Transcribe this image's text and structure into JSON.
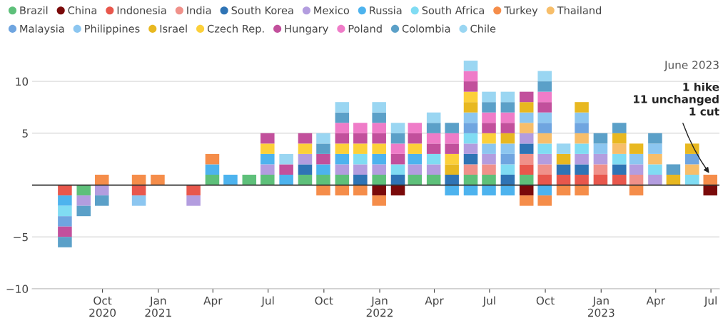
{
  "chart_data": {
    "type": "bar",
    "stacked": true,
    "x": [
      "2020-07-31",
      "2020-08-31",
      "2020-09-30",
      "2020-10-31",
      "2020-11-30",
      "2020-12-31",
      "2021-01-31",
      "2021-02-28",
      "2021-03-31",
      "2021-04-30",
      "2021-05-31",
      "2021-06-30",
      "2021-07-31",
      "2021-08-31",
      "2021-09-30",
      "2021-10-31",
      "2021-11-30",
      "2021-12-31",
      "2022-01-31",
      "2022-02-28",
      "2022-03-31",
      "2022-04-30",
      "2022-05-31",
      "2022-06-30",
      "2022-07-31",
      "2022-08-31",
      "2022-09-30",
      "2022-10-31",
      "2022-11-30",
      "2022-12-31",
      "2023-01-31",
      "2023-02-28",
      "2023-03-31",
      "2023-04-30",
      "2023-05-31",
      "2023-06-30"
    ],
    "series": [
      {
        "name": "Brazil",
        "color": "#5ec07a",
        "values": [
          null,
          -1,
          null,
          null,
          null,
          null,
          null,
          null,
          1,
          null,
          1,
          1,
          null,
          1,
          1,
          1,
          null,
          1,
          null,
          1,
          1,
          null,
          1,
          1,
          null,
          1,
          null,
          null,
          null,
          null,
          null,
          null,
          null,
          null,
          null,
          null
        ]
      },
      {
        "name": "China",
        "color": "#7a0a0a",
        "values": [
          null,
          null,
          null,
          null,
          null,
          null,
          null,
          null,
          null,
          null,
          null,
          null,
          null,
          null,
          null,
          null,
          null,
          -1,
          -1,
          null,
          null,
          null,
          null,
          null,
          null,
          -1,
          null,
          null,
          null,
          null,
          null,
          null,
          null,
          null,
          null,
          -1
        ]
      },
      {
        "name": "Indonesia",
        "color": "#e8574c",
        "values": [
          -1,
          null,
          null,
          null,
          -1,
          null,
          null,
          -1,
          null,
          null,
          null,
          null,
          null,
          null,
          null,
          null,
          null,
          null,
          null,
          null,
          null,
          null,
          null,
          null,
          null,
          1,
          1,
          1,
          1,
          1,
          1,
          null,
          null,
          null,
          null,
          null
        ]
      },
      {
        "name": "India",
        "color": "#f0918a",
        "values": [
          null,
          null,
          null,
          null,
          null,
          null,
          null,
          null,
          null,
          null,
          null,
          null,
          null,
          null,
          null,
          null,
          null,
          null,
          null,
          null,
          null,
          null,
          1,
          1,
          null,
          1,
          1,
          null,
          null,
          1,
          null,
          1,
          null,
          null,
          null,
          null
        ]
      },
      {
        "name": "South Korea",
        "color": "#2f74b5",
        "values": [
          null,
          null,
          null,
          null,
          null,
          null,
          null,
          null,
          null,
          null,
          null,
          null,
          null,
          1,
          null,
          null,
          1,
          null,
          1,
          null,
          null,
          1,
          1,
          null,
          1,
          1,
          null,
          1,
          1,
          null,
          1,
          null,
          null,
          null,
          null,
          null
        ]
      },
      {
        "name": "Mexico",
        "color": "#b39ddf",
        "values": [
          null,
          -1,
          -1,
          null,
          null,
          null,
          null,
          -1,
          null,
          null,
          null,
          1,
          null,
          1,
          null,
          1,
          1,
          1,
          null,
          1,
          1,
          null,
          1,
          1,
          null,
          1,
          1,
          null,
          1,
          1,
          null,
          1,
          1,
          null,
          null,
          null
        ]
      },
      {
        "name": "Russia",
        "color": "#4db3ee",
        "values": [
          -1,
          null,
          null,
          null,
          null,
          null,
          null,
          null,
          1,
          1,
          null,
          1,
          1,
          null,
          1,
          1,
          null,
          1,
          null,
          1,
          null,
          -1,
          -1,
          -1,
          -1,
          null,
          -1,
          null,
          null,
          null,
          null,
          null,
          null,
          null,
          null,
          null
        ]
      },
      {
        "name": "South Africa",
        "color": "#80dcf3",
        "values": [
          -1,
          null,
          null,
          null,
          null,
          null,
          null,
          null,
          null,
          null,
          null,
          null,
          null,
          null,
          null,
          null,
          1,
          null,
          1,
          null,
          1,
          null,
          1,
          null,
          1,
          null,
          1,
          null,
          1,
          null,
          1,
          null,
          1,
          null,
          1,
          null
        ]
      },
      {
        "name": "Turkey",
        "color": "#f58d4a",
        "values": [
          null,
          null,
          1,
          null,
          1,
          1,
          null,
          null,
          1,
          null,
          null,
          null,
          null,
          null,
          -1,
          -1,
          -1,
          -1,
          null,
          null,
          null,
          null,
          null,
          null,
          null,
          -1,
          -1,
          -1,
          -1,
          null,
          null,
          -1,
          null,
          null,
          null,
          1
        ]
      },
      {
        "name": "Thailand",
        "color": "#f7be6a",
        "values": [
          null,
          null,
          null,
          null,
          null,
          null,
          null,
          null,
          null,
          null,
          null,
          null,
          null,
          null,
          null,
          null,
          null,
          null,
          null,
          null,
          null,
          null,
          null,
          null,
          null,
          1,
          1,
          null,
          1,
          null,
          1,
          null,
          1,
          null,
          1,
          null
        ]
      },
      {
        "name": "Malaysia",
        "color": "#6fa5e0",
        "values": [
          -1,
          null,
          null,
          null,
          null,
          null,
          null,
          null,
          null,
          null,
          null,
          null,
          null,
          null,
          null,
          null,
          null,
          null,
          null,
          null,
          null,
          null,
          1,
          null,
          1,
          null,
          1,
          null,
          1,
          null,
          null,
          null,
          null,
          null,
          1,
          null
        ]
      },
      {
        "name": "Philippines",
        "color": "#8cc6f0",
        "values": [
          null,
          null,
          null,
          null,
          -1,
          null,
          null,
          null,
          null,
          null,
          null,
          null,
          null,
          null,
          null,
          null,
          null,
          null,
          null,
          null,
          null,
          null,
          1,
          1,
          1,
          1,
          1,
          null,
          1,
          1,
          null,
          1,
          1,
          null,
          null,
          null
        ]
      },
      {
        "name": "Israel",
        "color": "#e8b820",
        "values": [
          null,
          null,
          null,
          null,
          null,
          null,
          null,
          null,
          null,
          null,
          null,
          null,
          null,
          null,
          null,
          null,
          null,
          null,
          null,
          null,
          null,
          1,
          1,
          null,
          1,
          1,
          null,
          1,
          1,
          null,
          1,
          1,
          null,
          1,
          1,
          null
        ]
      },
      {
        "name": "Czech Rep.",
        "color": "#fcd03a",
        "values": [
          null,
          null,
          null,
          null,
          null,
          null,
          null,
          null,
          null,
          null,
          null,
          1,
          null,
          1,
          null,
          1,
          1,
          1,
          null,
          1,
          null,
          1,
          1,
          1,
          null,
          null,
          null,
          null,
          null,
          null,
          null,
          null,
          null,
          null,
          null,
          null
        ]
      },
      {
        "name": "Hungary",
        "color": "#c2509c",
        "values": [
          -1,
          null,
          null,
          null,
          null,
          null,
          null,
          null,
          null,
          null,
          null,
          1,
          1,
          1,
          1,
          1,
          1,
          1,
          1,
          1,
          1,
          1,
          1,
          1,
          1,
          1,
          1,
          null,
          null,
          null,
          null,
          null,
          null,
          null,
          null,
          null
        ]
      },
      {
        "name": "Poland",
        "color": "#ef7cc8",
        "values": [
          null,
          null,
          null,
          null,
          null,
          null,
          null,
          null,
          null,
          null,
          null,
          null,
          null,
          null,
          null,
          1,
          1,
          1,
          1,
          1,
          1,
          1,
          1,
          1,
          1,
          null,
          1,
          null,
          null,
          null,
          null,
          null,
          null,
          null,
          null,
          null
        ]
      },
      {
        "name": "Colombia",
        "color": "#5ba0c8",
        "values": [
          -1,
          -1,
          -1,
          null,
          null,
          null,
          null,
          null,
          null,
          null,
          null,
          null,
          null,
          null,
          1,
          1,
          null,
          1,
          1,
          null,
          1,
          1,
          null,
          1,
          1,
          null,
          1,
          null,
          null,
          1,
          1,
          null,
          1,
          1,
          null,
          null
        ]
      },
      {
        "name": "Chile",
        "color": "#9ad6f2",
        "values": [
          null,
          null,
          null,
          null,
          null,
          null,
          null,
          null,
          null,
          null,
          null,
          null,
          1,
          null,
          1,
          1,
          null,
          1,
          1,
          null,
          1,
          null,
          1,
          1,
          1,
          null,
          1,
          1,
          null,
          null,
          null,
          null,
          null,
          null,
          null,
          null
        ]
      }
    ],
    "xlim": [
      "2020-06-07",
      "2023-07-15"
    ],
    "xticks": [
      {
        "value": "2020-10-01",
        "label": "Oct\n2020"
      },
      {
        "value": "2021-01-01",
        "label": "Jan\n2021"
      },
      {
        "value": "2021-04-01",
        "label": "Apr"
      },
      {
        "value": "2021-07-01",
        "label": "Jul"
      },
      {
        "value": "2021-10-01",
        "label": "Oct"
      },
      {
        "value": "2022-01-01",
        "label": "Jan\n2022"
      },
      {
        "value": "2022-04-01",
        "label": "Apr"
      },
      {
        "value": "2022-07-01",
        "label": "Jul"
      },
      {
        "value": "2022-10-01",
        "label": "Oct"
      },
      {
        "value": "2023-01-01",
        "label": "Jan\n2023"
      },
      {
        "value": "2023-04-01",
        "label": "Apr"
      },
      {
        "value": "2023-07-01",
        "label": "Jul"
      }
    ],
    "ylim": [
      -10,
      12
    ],
    "yticks": [
      -10,
      -5,
      {
        "value": 0,
        "label": null
      },
      5,
      10
    ],
    "ref_lines": [
      {
        "axis": "y",
        "value": 0,
        "color": "#333333"
      }
    ],
    "grid": "y",
    "legend": "top",
    "annotations": [
      "June 2023",
      {
        "text": "1 hike\n11 unchanged\n1 cut",
        "x": "2023-06-30",
        "y": 1
      }
    ]
  }
}
